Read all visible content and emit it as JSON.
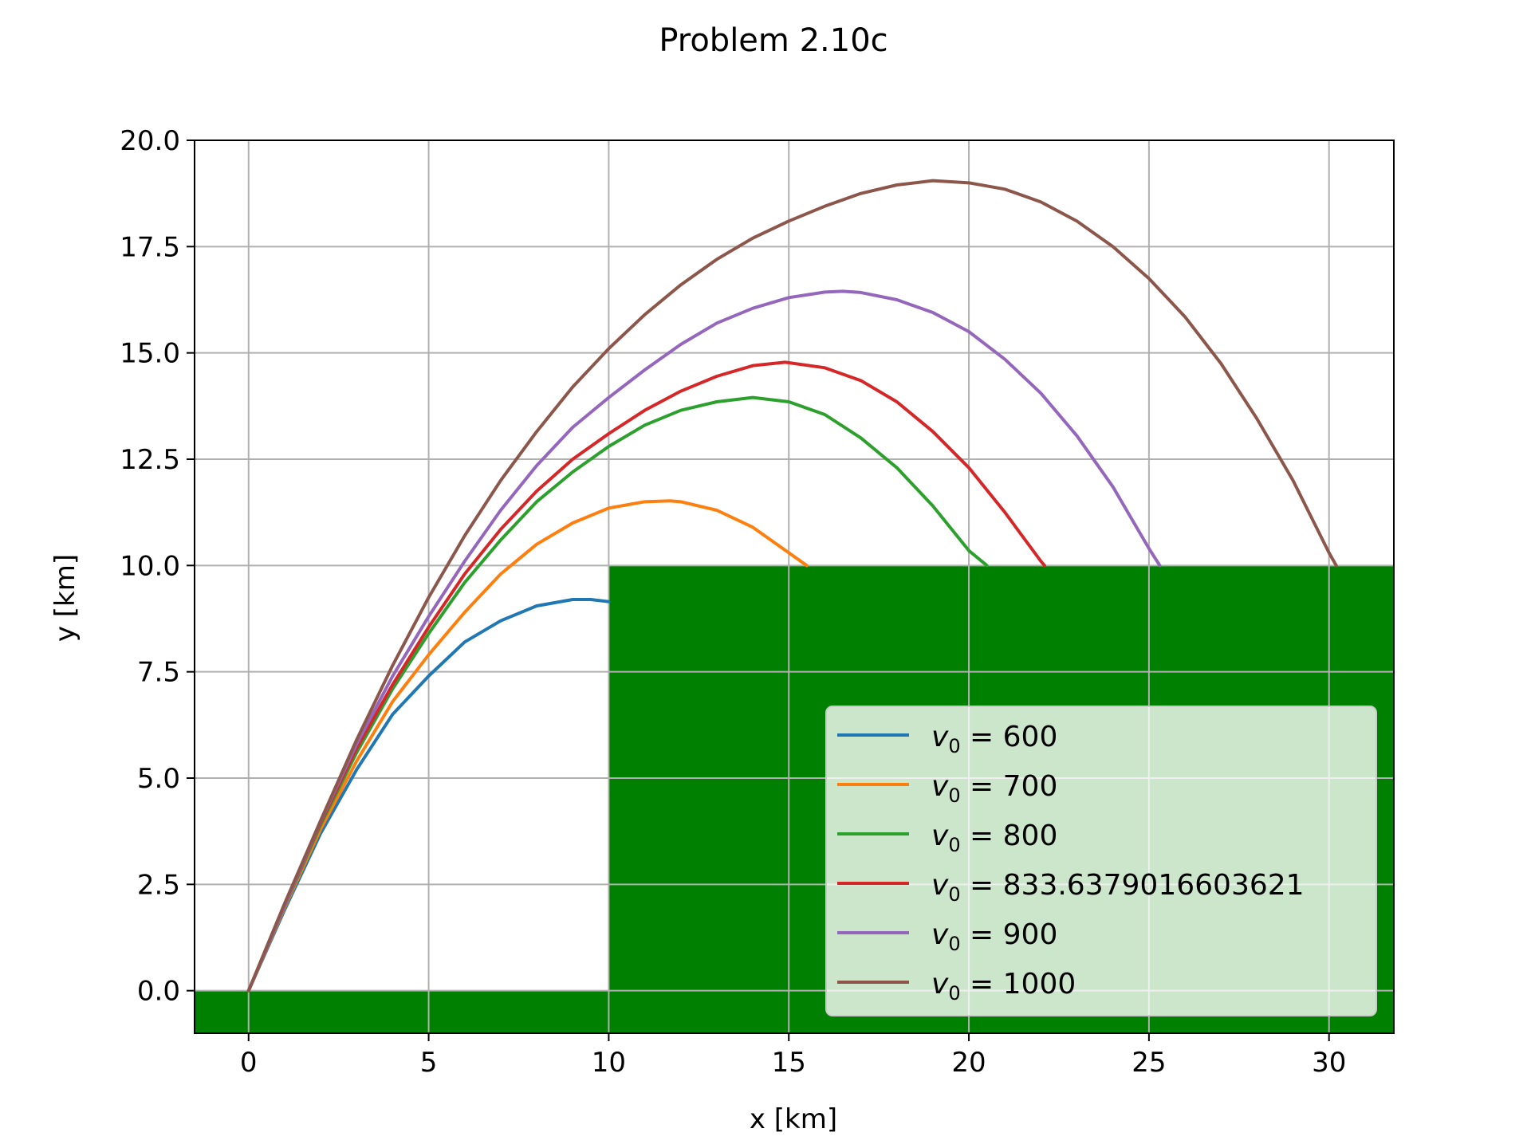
{
  "chart_data": {
    "type": "line",
    "title": "Problem 2.10c",
    "xlabel": "x [km]",
    "ylabel": "y [km]",
    "xlim": [
      -1.5,
      31.8
    ],
    "ylim": [
      -1.0,
      20.0
    ],
    "xticks": [
      0,
      5,
      10,
      15,
      20,
      25,
      30
    ],
    "yticks": [
      0.0,
      2.5,
      5.0,
      7.5,
      10.0,
      12.5,
      15.0,
      17.5,
      20.0
    ],
    "xtick_labels": [
      "0",
      "5",
      "10",
      "15",
      "20",
      "25",
      "30"
    ],
    "ytick_labels": [
      "0.0",
      "2.5",
      "5.0",
      "7.5",
      "10.0",
      "12.5",
      "15.0",
      "17.5",
      "20.0"
    ],
    "grid": true,
    "legend_position": "lower-right",
    "terrain": {
      "color": "#008000",
      "regions": [
        {
          "x_from": -1.5,
          "x_to": 10,
          "top": 0
        },
        {
          "x_from": 10,
          "x_to": 31.8,
          "top": 10
        }
      ]
    },
    "series": [
      {
        "name": "600",
        "color": "#1f77b4",
        "end_x": 10.0,
        "points": [
          [
            0,
            0
          ],
          [
            1,
            1.9
          ],
          [
            2,
            3.7
          ],
          [
            3,
            5.2
          ],
          [
            4,
            6.5
          ],
          [
            5,
            7.4
          ],
          [
            6,
            8.2
          ],
          [
            7,
            8.7
          ],
          [
            8,
            9.05
          ],
          [
            9,
            9.2
          ],
          [
            9.5,
            9.2
          ],
          [
            10,
            9.15
          ]
        ]
      },
      {
        "name": "700",
        "color": "#ff7f0e",
        "end_x": 15.5,
        "points": [
          [
            0,
            0
          ],
          [
            1,
            1.95
          ],
          [
            2,
            3.8
          ],
          [
            3,
            5.4
          ],
          [
            4,
            6.8
          ],
          [
            5,
            7.9
          ],
          [
            6,
            8.9
          ],
          [
            7,
            9.8
          ],
          [
            8,
            10.5
          ],
          [
            9,
            11.0
          ],
          [
            10,
            11.35
          ],
          [
            11,
            11.5
          ],
          [
            11.7,
            11.52
          ],
          [
            12,
            11.5
          ],
          [
            13,
            11.3
          ],
          [
            14,
            10.9
          ],
          [
            15,
            10.3
          ],
          [
            15.5,
            10.0
          ]
        ]
      },
      {
        "name": "800",
        "color": "#2ca02c",
        "end_x": 20.5,
        "points": [
          [
            0,
            0
          ],
          [
            1,
            1.98
          ],
          [
            2,
            3.9
          ],
          [
            3,
            5.6
          ],
          [
            4,
            7.1
          ],
          [
            5,
            8.4
          ],
          [
            6,
            9.6
          ],
          [
            7,
            10.6
          ],
          [
            8,
            11.5
          ],
          [
            9,
            12.2
          ],
          [
            10,
            12.8
          ],
          [
            11,
            13.3
          ],
          [
            12,
            13.65
          ],
          [
            13,
            13.85
          ],
          [
            14,
            13.95
          ],
          [
            15,
            13.85
          ],
          [
            16,
            13.55
          ],
          [
            17,
            13.0
          ],
          [
            18,
            12.3
          ],
          [
            19,
            11.4
          ],
          [
            20,
            10.35
          ],
          [
            20.5,
            10.0
          ]
        ]
      },
      {
        "name": "833.6379016603621",
        "color": "#d62728",
        "end_x": 22.1,
        "points": [
          [
            0,
            0
          ],
          [
            1,
            2.0
          ],
          [
            2,
            3.95
          ],
          [
            3,
            5.7
          ],
          [
            4,
            7.2
          ],
          [
            5,
            8.55
          ],
          [
            6,
            9.8
          ],
          [
            7,
            10.85
          ],
          [
            8,
            11.75
          ],
          [
            9,
            12.5
          ],
          [
            10,
            13.1
          ],
          [
            11,
            13.65
          ],
          [
            12,
            14.1
          ],
          [
            13,
            14.45
          ],
          [
            14,
            14.7
          ],
          [
            14.9,
            14.78
          ],
          [
            16,
            14.65
          ],
          [
            17,
            14.35
          ],
          [
            18,
            13.85
          ],
          [
            19,
            13.15
          ],
          [
            20,
            12.3
          ],
          [
            21,
            11.25
          ],
          [
            22,
            10.1
          ],
          [
            22.1,
            10.0
          ]
        ]
      },
      {
        "name": "900",
        "color": "#9467bd",
        "end_x": 25.3,
        "points": [
          [
            0,
            0
          ],
          [
            1,
            2.0
          ],
          [
            2,
            3.98
          ],
          [
            3,
            5.8
          ],
          [
            4,
            7.4
          ],
          [
            5,
            8.8
          ],
          [
            6,
            10.1
          ],
          [
            7,
            11.3
          ],
          [
            8,
            12.35
          ],
          [
            9,
            13.25
          ],
          [
            10,
            13.95
          ],
          [
            11,
            14.6
          ],
          [
            12,
            15.2
          ],
          [
            13,
            15.7
          ],
          [
            14,
            16.05
          ],
          [
            15,
            16.3
          ],
          [
            16,
            16.43
          ],
          [
            16.5,
            16.45
          ],
          [
            17,
            16.42
          ],
          [
            18,
            16.25
          ],
          [
            19,
            15.95
          ],
          [
            20,
            15.5
          ],
          [
            21,
            14.85
          ],
          [
            22,
            14.05
          ],
          [
            23,
            13.05
          ],
          [
            24,
            11.85
          ],
          [
            25,
            10.4
          ],
          [
            25.3,
            10.0
          ]
        ]
      },
      {
        "name": "1000",
        "color": "#8c564b",
        "end_x": 30.2,
        "points": [
          [
            0,
            0
          ],
          [
            1,
            2.05
          ],
          [
            2,
            4.0
          ],
          [
            3,
            5.9
          ],
          [
            4,
            7.65
          ],
          [
            5,
            9.25
          ],
          [
            6,
            10.7
          ],
          [
            7,
            12.0
          ],
          [
            8,
            13.15
          ],
          [
            9,
            14.2
          ],
          [
            10,
            15.1
          ],
          [
            11,
            15.9
          ],
          [
            12,
            16.6
          ],
          [
            13,
            17.2
          ],
          [
            14,
            17.7
          ],
          [
            15,
            18.1
          ],
          [
            16,
            18.45
          ],
          [
            17,
            18.75
          ],
          [
            18,
            18.95
          ],
          [
            19,
            19.05
          ],
          [
            20,
            19.0
          ],
          [
            21,
            18.85
          ],
          [
            22,
            18.55
          ],
          [
            23,
            18.1
          ],
          [
            24,
            17.5
          ],
          [
            25,
            16.75
          ],
          [
            26,
            15.85
          ],
          [
            27,
            14.75
          ],
          [
            28,
            13.45
          ],
          [
            29,
            12.0
          ],
          [
            30,
            10.3
          ],
          [
            30.2,
            10.0
          ]
        ]
      }
    ],
    "legend_entries": [
      {
        "symbol": "v",
        "subscript": "0",
        "value": "600",
        "color": "#1f77b4"
      },
      {
        "symbol": "v",
        "subscript": "0",
        "value": "700",
        "color": "#ff7f0e"
      },
      {
        "symbol": "v",
        "subscript": "0",
        "value": "800",
        "color": "#2ca02c"
      },
      {
        "symbol": "v",
        "subscript": "0",
        "value": "833.6379016603621",
        "color": "#d62728"
      },
      {
        "symbol": "v",
        "subscript": "0",
        "value": "900",
        "color": "#9467bd"
      },
      {
        "symbol": "v",
        "subscript": "0",
        "value": "1000",
        "color": "#8c564b"
      }
    ]
  }
}
